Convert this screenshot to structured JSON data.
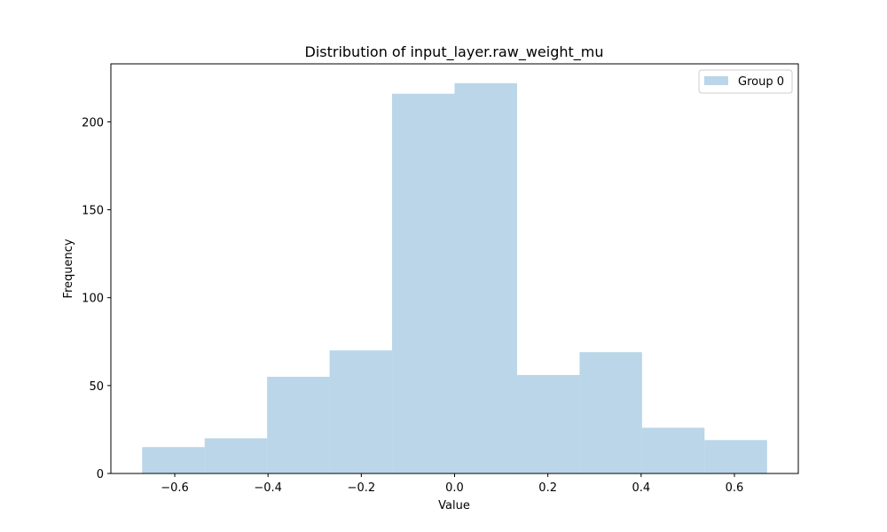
{
  "chart_data": {
    "type": "bar",
    "title": "Distribution of input_layer.raw_weight_mu",
    "xlabel": "Value",
    "ylabel": "Frequency",
    "bin_edges": [
      -0.67,
      -0.536,
      -0.402,
      -0.268,
      -0.134,
      0.0,
      0.134,
      0.268,
      0.402,
      0.536,
      0.67
    ],
    "series": [
      {
        "name": "Group 0",
        "values": [
          15,
          20,
          55,
          70,
          216,
          222,
          56,
          69,
          26,
          19
        ],
        "color": "#bad6e8"
      }
    ],
    "xlim": [
      -0.737,
      0.737
    ],
    "ylim": [
      0,
      233
    ],
    "xticks": [
      -0.6,
      -0.4,
      -0.2,
      0.0,
      0.2,
      0.4,
      0.6
    ],
    "xtick_labels": [
      "−0.6",
      "−0.4",
      "−0.2",
      "0.0",
      "0.2",
      "0.4",
      "0.6"
    ],
    "yticks": [
      0,
      50,
      100,
      150,
      200
    ],
    "ytick_labels": [
      "0",
      "50",
      "100",
      "150",
      "200"
    ],
    "grid": false,
    "legend_position": "top-right"
  }
}
